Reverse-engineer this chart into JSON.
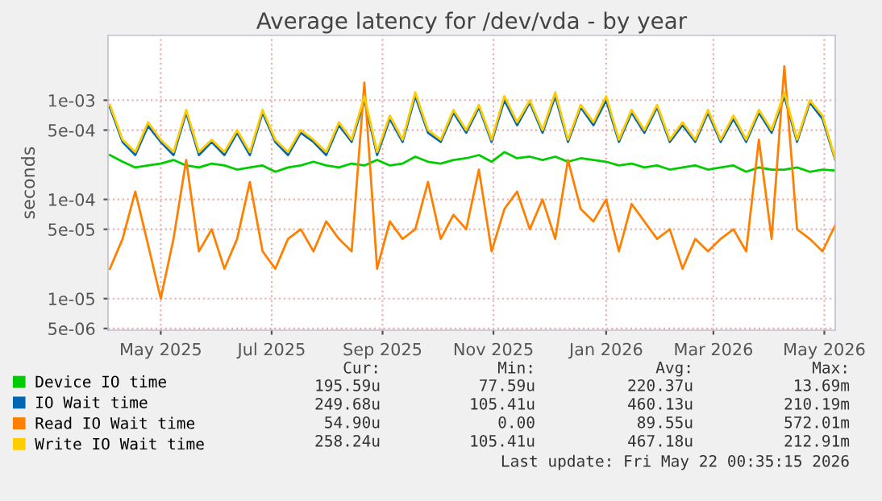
{
  "chart_data": {
    "type": "line",
    "title": "Average latency for /dev/vda - by year",
    "ylabel": "seconds",
    "log": "y",
    "grid": true,
    "legend": "bottom",
    "marker": "none",
    "line_style": "solid",
    "xlim": [
      "2025-04-17",
      "2026-05-22"
    ],
    "xticks": [
      {
        "value": "2025-05-16",
        "label": "May 2025"
      },
      {
        "value": "2025-07-16",
        "label": "Jul 2025"
      },
      {
        "value": "2025-09-15",
        "label": "Sep 2025"
      },
      {
        "value": "2025-11-15",
        "label": "Nov 2025"
      },
      {
        "value": "2026-01-16",
        "label": "Jan 2026"
      },
      {
        "value": "2026-03-16",
        "label": "Mar 2026"
      },
      {
        "value": "2026-05-16",
        "label": "May 2026"
      }
    ],
    "ylim": [
      4.8e-06,
      0.0045
    ],
    "yticks": [
      {
        "value": 5e-06,
        "label": "5e-06"
      },
      {
        "value": 1e-05,
        "label": "1e-05"
      },
      {
        "value": 5e-05,
        "label": "5e-05"
      },
      {
        "value": 0.0001,
        "label": "1e-04"
      },
      {
        "value": 0.0005,
        "label": "5e-04"
      },
      {
        "value": 0.001,
        "label": "1e-03"
      }
    ],
    "x": [
      "2025-04-18",
      "2025-04-25",
      "2025-05-02",
      "2025-05-09",
      "2025-05-16",
      "2025-05-23",
      "2025-05-30",
      "2025-06-06",
      "2025-06-13",
      "2025-06-20",
      "2025-06-27",
      "2025-07-04",
      "2025-07-11",
      "2025-07-18",
      "2025-07-25",
      "2025-08-01",
      "2025-08-08",
      "2025-08-15",
      "2025-08-22",
      "2025-08-29",
      "2025-09-05",
      "2025-09-12",
      "2025-09-19",
      "2025-09-26",
      "2025-10-03",
      "2025-10-10",
      "2025-10-17",
      "2025-10-24",
      "2025-10-31",
      "2025-11-07",
      "2025-11-14",
      "2025-11-21",
      "2025-11-28",
      "2025-12-05",
      "2025-12-12",
      "2025-12-19",
      "2025-12-26",
      "2026-01-02",
      "2026-01-09",
      "2026-01-16",
      "2026-01-23",
      "2026-01-30",
      "2026-02-06",
      "2026-02-13",
      "2026-02-20",
      "2026-02-27",
      "2026-03-06",
      "2026-03-13",
      "2026-03-20",
      "2026-03-27",
      "2026-04-03",
      "2026-04-10",
      "2026-04-17",
      "2026-04-24",
      "2026-05-01",
      "2026-05-08",
      "2026-05-15",
      "2026-05-22"
    ],
    "series": [
      {
        "name": "Device IO time",
        "color": "#00cc00",
        "values": [
          0.00028,
          0.00024,
          0.00021,
          0.00022,
          0.00023,
          0.00025,
          0.00022,
          0.00021,
          0.00023,
          0.00022,
          0.0002,
          0.00021,
          0.00022,
          0.00019,
          0.00021,
          0.00022,
          0.00024,
          0.00022,
          0.00021,
          0.00023,
          0.00022,
          0.00025,
          0.00022,
          0.00023,
          0.00027,
          0.00024,
          0.00023,
          0.00025,
          0.00026,
          0.00028,
          0.00024,
          0.0003,
          0.00026,
          0.00027,
          0.00025,
          0.00027,
          0.00024,
          0.00026,
          0.00025,
          0.00024,
          0.00022,
          0.00023,
          0.00021,
          0.00022,
          0.0002,
          0.00021,
          0.00022,
          0.0002,
          0.00021,
          0.00022,
          0.00019,
          0.00021,
          0.0002,
          0.0002,
          0.00021,
          0.00019,
          0.0002,
          0.000196
        ]
      },
      {
        "name": "IO Wait time",
        "color": "#0066b3",
        "values": [
          0.00085,
          0.00038,
          0.00028,
          0.00055,
          0.00038,
          0.00028,
          0.00075,
          0.00028,
          0.00038,
          0.00028,
          0.00047,
          0.00028,
          0.00075,
          0.00038,
          0.00028,
          0.00047,
          0.00038,
          0.00028,
          0.00056,
          0.00038,
          0.001,
          0.00028,
          0.00065,
          0.00038,
          0.0011,
          0.00047,
          0.00038,
          0.00075,
          0.00047,
          0.00085,
          0.00038,
          0.001,
          0.00056,
          0.00095,
          0.00047,
          0.0011,
          0.00038,
          0.00085,
          0.00056,
          0.001,
          0.00038,
          0.00075,
          0.00047,
          0.00085,
          0.00038,
          0.00056,
          0.00038,
          0.00075,
          0.00038,
          0.00065,
          0.00038,
          0.00075,
          0.00047,
          0.0011,
          0.00038,
          0.00095,
          0.00065,
          0.00025
        ]
      },
      {
        "name": "Read IO Wait time",
        "color": "#ff8000",
        "values": [
          2e-05,
          4e-05,
          0.00012,
          3.5e-05,
          1e-05,
          4e-05,
          0.00025,
          3e-05,
          5e-05,
          2e-05,
          4e-05,
          0.00015,
          3e-05,
          2e-05,
          4e-05,
          5e-05,
          3e-05,
          6e-05,
          4e-05,
          3e-05,
          0.0015,
          2e-05,
          6e-05,
          4e-05,
          5e-05,
          0.00015,
          4e-05,
          7e-05,
          5e-05,
          0.0002,
          3e-05,
          8e-05,
          0.00012,
          5e-05,
          0.0001,
          4e-05,
          0.00025,
          8e-05,
          6e-05,
          0.0001,
          3e-05,
          9e-05,
          6e-05,
          4e-05,
          5e-05,
          2e-05,
          4e-05,
          3e-05,
          4e-05,
          5e-05,
          3e-05,
          0.0004,
          4e-05,
          0.0022,
          5e-05,
          4e-05,
          3e-05,
          5.49e-05
        ]
      },
      {
        "name": "Write IO Wait time",
        "color": "#ffcc00",
        "values": [
          0.0009,
          0.0004,
          0.0003,
          0.0006,
          0.0004,
          0.0003,
          0.0008,
          0.0003,
          0.0004,
          0.0003,
          0.0005,
          0.0003,
          0.0008,
          0.0004,
          0.0003,
          0.0005,
          0.0004,
          0.0003,
          0.0006,
          0.0004,
          0.0011,
          0.0003,
          0.0007,
          0.0004,
          0.0012,
          0.0005,
          0.0004,
          0.0008,
          0.0005,
          0.0009,
          0.0004,
          0.0011,
          0.0006,
          0.001,
          0.0005,
          0.0012,
          0.0004,
          0.0009,
          0.0006,
          0.0011,
          0.0004,
          0.0008,
          0.0005,
          0.0009,
          0.0004,
          0.0006,
          0.0004,
          0.0008,
          0.0004,
          0.0007,
          0.0004,
          0.0008,
          0.0005,
          0.0012,
          0.0004,
          0.001,
          0.0007,
          0.000258
        ]
      }
    ],
    "annotations": [
      "Cur:",
      "Min:",
      "Avg:",
      "Max:",
      "195.59u",
      "77.59u",
      "220.37u",
      "13.69m",
      "249.68u",
      "105.41u",
      "460.13u",
      "210.19m",
      "54.90u",
      "0.00",
      "89.55u",
      "572.01m",
      "258.24u",
      "105.41u",
      "467.18u",
      "212.91m",
      "Last update: Fri May 22 00:35:15 2026"
    ]
  }
}
